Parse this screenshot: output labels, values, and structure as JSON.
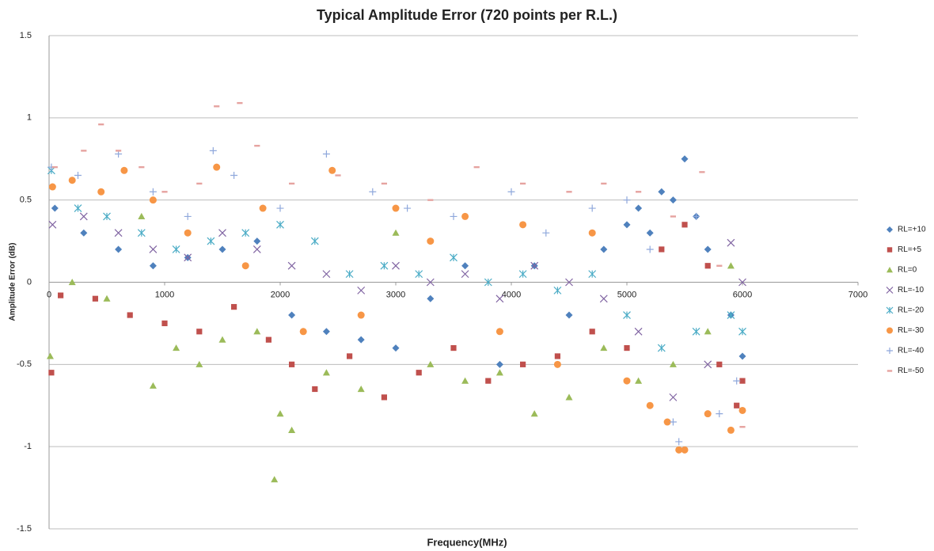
{
  "chart_data": {
    "type": "scatter",
    "title": "Typical Amplitude Error (720 points per R.L.)",
    "xlabel": "Frequency(MHz)",
    "ylabel": "Amplitude Error (dB)",
    "xlim": [
      0,
      7000
    ],
    "xticks": [
      0,
      1000,
      2000,
      3000,
      4000,
      5000,
      6000,
      7000
    ],
    "ylim": [
      -1.5,
      1.5
    ],
    "yticks": [
      -1.5,
      -1,
      -0.5,
      0,
      0.5,
      1,
      1.5
    ],
    "grid": true,
    "legend": "right",
    "series": [
      {
        "name": "RL=+10",
        "color": "#4f81bd",
        "marker": "diamond",
        "x": [
          50,
          300,
          600,
          900,
          1200,
          1500,
          1800,
          2100,
          2400,
          2700,
          3000,
          3300,
          3600,
          3900,
          4200,
          4500,
          4800,
          5000,
          5100,
          5200,
          5300,
          5400,
          5500,
          5600,
          5700,
          5900,
          6000
        ],
        "values": [
          0.45,
          0.3,
          0.2,
          0.1,
          0.15,
          0.2,
          0.25,
          -0.2,
          -0.3,
          -0.35,
          -0.4,
          -0.1,
          0.1,
          -0.5,
          0.1,
          -0.2,
          0.2,
          0.35,
          0.45,
          0.3,
          0.55,
          0.5,
          0.75,
          0.4,
          0.2,
          -0.2,
          -0.45
        ]
      },
      {
        "name": "RL=+5",
        "color": "#c0504d",
        "marker": "square",
        "x": [
          20,
          100,
          400,
          700,
          1000,
          1300,
          1600,
          1900,
          2100,
          2300,
          2600,
          2900,
          3200,
          3500,
          3800,
          4100,
          4400,
          4700,
          5000,
          5300,
          5500,
          5700,
          5800,
          5950,
          6000
        ],
        "values": [
          -0.55,
          -0.08,
          -0.1,
          -0.2,
          -0.25,
          -0.3,
          -0.15,
          -0.35,
          -0.5,
          -0.65,
          -0.45,
          -0.7,
          -0.55,
          -0.4,
          -0.6,
          -0.5,
          -0.45,
          -0.3,
          -0.4,
          0.2,
          0.35,
          0.1,
          -0.5,
          -0.75,
          -0.6
        ]
      },
      {
        "name": "RL=0",
        "color": "#9bbb59",
        "marker": "triangle",
        "x": [
          10,
          200,
          500,
          800,
          900,
          1100,
          1300,
          1500,
          1800,
          1950,
          2000,
          2100,
          2400,
          2700,
          3000,
          3300,
          3600,
          3900,
          4200,
          4500,
          4800,
          5100,
          5400,
          5700,
          5900
        ],
        "values": [
          -0.45,
          0,
          -0.1,
          0.4,
          -0.63,
          -0.4,
          -0.5,
          -0.35,
          -0.3,
          -1.2,
          -0.8,
          -0.9,
          -0.55,
          -0.65,
          0.3,
          -0.5,
          -0.6,
          -0.55,
          -0.8,
          -0.7,
          -0.4,
          -0.6,
          -0.5,
          -0.3,
          0.1
        ]
      },
      {
        "name": "RL=-10",
        "color": "#8064a2",
        "marker": "cross",
        "x": [
          30,
          300,
          600,
          900,
          1200,
          1500,
          1800,
          2100,
          2400,
          2700,
          3000,
          3300,
          3600,
          3900,
          4200,
          4500,
          4800,
          5100,
          5400,
          5700,
          5900,
          6000
        ],
        "values": [
          0.35,
          0.4,
          0.3,
          0.2,
          0.15,
          0.3,
          0.2,
          0.1,
          0.05,
          -0.05,
          0.1,
          0,
          0.05,
          -0.1,
          0.1,
          0,
          -0.1,
          -0.3,
          -0.7,
          -0.5,
          0.24,
          0
        ]
      },
      {
        "name": "RL=-20",
        "color": "#4bacc6",
        "marker": "star",
        "x": [
          20,
          250,
          500,
          800,
          1100,
          1400,
          1700,
          2000,
          2300,
          2600,
          2900,
          3200,
          3500,
          3800,
          4100,
          4400,
          4700,
          5000,
          5300,
          5600,
          5900,
          6000
        ],
        "values": [
          0.68,
          0.45,
          0.4,
          0.3,
          0.2,
          0.25,
          0.3,
          0.35,
          0.25,
          0.05,
          0.1,
          0.05,
          0.15,
          0,
          0.05,
          -0.05,
          0.05,
          -0.2,
          -0.4,
          -0.3,
          -0.2,
          -0.3
        ]
      },
      {
        "name": "RL=-30",
        "color": "#f79646",
        "marker": "circle",
        "x": [
          30,
          200,
          450,
          650,
          900,
          1200,
          1450,
          1700,
          1850,
          2200,
          2450,
          2700,
          3000,
          3300,
          3600,
          3900,
          4100,
          4400,
          4700,
          5000,
          5200,
          5350,
          5450,
          5500,
          5700,
          5900,
          6000
        ],
        "values": [
          0.58,
          0.62,
          0.55,
          0.68,
          0.5,
          0.3,
          0.7,
          0.1,
          0.45,
          -0.3,
          0.68,
          -0.2,
          0.45,
          0.25,
          0.4,
          -0.3,
          0.35,
          -0.5,
          0.3,
          -0.6,
          -0.75,
          -0.85,
          -1.02,
          -1.02,
          -0.8,
          -0.9,
          -0.78
        ]
      },
      {
        "name": "RL=-40",
        "color": "#8fa8dc",
        "marker": "plus",
        "x": [
          20,
          250,
          600,
          900,
          1200,
          1420,
          1600,
          2000,
          2400,
          2800,
          3100,
          3500,
          4000,
          4300,
          4700,
          5000,
          5200,
          5400,
          5450,
          5600,
          5800,
          5950
        ],
        "values": [
          0.7,
          0.65,
          0.78,
          0.55,
          0.4,
          0.8,
          0.65,
          0.45,
          0.78,
          0.55,
          0.45,
          0.4,
          0.55,
          0.3,
          0.45,
          0.5,
          0.2,
          -0.85,
          -0.97,
          0.4,
          -0.8,
          -0.6
        ]
      },
      {
        "name": "RL=-50",
        "color": "#e6a3a0",
        "marker": "dash",
        "x": [
          50,
          300,
          450,
          600,
          800,
          1000,
          1300,
          1450,
          1650,
          1800,
          2100,
          2500,
          2900,
          3300,
          3700,
          4100,
          4500,
          4800,
          5100,
          5400,
          5650,
          5800,
          6000
        ],
        "values": [
          0.7,
          0.8,
          0.96,
          0.8,
          0.7,
          0.55,
          0.6,
          1.07,
          1.09,
          0.83,
          0.6,
          0.65,
          0.6,
          0.5,
          0.7,
          0.6,
          0.55,
          0.6,
          0.55,
          0.4,
          0.67,
          0.1,
          -0.88
        ]
      }
    ]
  }
}
